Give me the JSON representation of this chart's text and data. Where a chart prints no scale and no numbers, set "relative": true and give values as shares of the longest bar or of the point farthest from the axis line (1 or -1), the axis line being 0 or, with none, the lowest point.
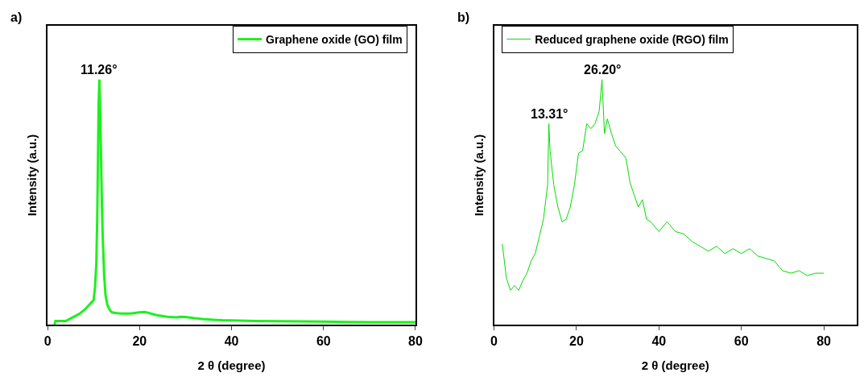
{
  "chart_data": [
    {
      "type": "line",
      "relative": true,
      "xlabel": "2 θ (degree)",
      "ylabel": "Intensity (a.u.)",
      "xlim": [
        0,
        80
      ],
      "xticks": [
        0,
        20,
        40,
        60,
        80
      ],
      "legend": "top right",
      "line_style": "solid",
      "annotations": [
        "a)",
        {
          "text": "11.26°",
          "x": 11.26,
          "y": 1
        }
      ],
      "series": [
        {
          "name": "Graphene oxide (GO) film",
          "color": "#1ef01e",
          "x": [
            1.5,
            1.7,
            3,
            4,
            5,
            6,
            7,
            8,
            9,
            9.5,
            10,
            10.3,
            10.6,
            10.8,
            11,
            11.1,
            11.26,
            11.4,
            11.6,
            11.8,
            12,
            12.3,
            12.6,
            13,
            13.5,
            14,
            15,
            16,
            18,
            20,
            21,
            22,
            23,
            24,
            26,
            28,
            29,
            30,
            32,
            34,
            36,
            38,
            40,
            45,
            50,
            55,
            60,
            65,
            70,
            75,
            80
          ],
          "values": [
            0,
            0.015,
            0.015,
            0.015,
            0.025,
            0.035,
            0.045,
            0.06,
            0.08,
            0.09,
            0.1,
            0.15,
            0.25,
            0.45,
            0.75,
            0.9,
            1,
            0.9,
            0.7,
            0.5,
            0.35,
            0.2,
            0.12,
            0.08,
            0.06,
            0.05,
            0.047,
            0.045,
            0.045,
            0.05,
            0.052,
            0.048,
            0.042,
            0.038,
            0.032,
            0.03,
            0.032,
            0.031,
            0.026,
            0.022,
            0.02,
            0.018,
            0.017,
            0.015,
            0.014,
            0.013,
            0.012,
            0.011,
            0.01,
            0.01,
            0.01
          ]
        }
      ]
    },
    {
      "type": "line",
      "relative": true,
      "xlabel": "2 θ (degree)",
      "ylabel": "Intensity (a.u.)",
      "xlim": [
        0,
        88
      ],
      "xticks": [
        0,
        20,
        40,
        60,
        80
      ],
      "legend": "top left",
      "line_style": "solid",
      "annotations": [
        "b)",
        {
          "text": "13.31°",
          "x": 13.31,
          "y": 0.82
        },
        {
          "text": "26.20°",
          "x": 26.2,
          "y": 1
        }
      ],
      "series": [
        {
          "name": "Reduced graphene oxide (RGO) film",
          "color": "#00dd00",
          "x": [
            2,
            2.3,
            3,
            4,
            5,
            6,
            7,
            8,
            9,
            10,
            11,
            12,
            13,
            13.31,
            13.6,
            14.5,
            15.5,
            16.5,
            17.5,
            18.5,
            19.5,
            20.5,
            21.5,
            22.5,
            23.5,
            24.5,
            25.5,
            26.2,
            26.8,
            27.5,
            28.5,
            29.5,
            30.5,
            32,
            33,
            34,
            35,
            36,
            37,
            38,
            40,
            42,
            44,
            46,
            48,
            50,
            52,
            54,
            56,
            58,
            60,
            62,
            64,
            66,
            68,
            70,
            72,
            74,
            76,
            78,
            80
          ],
          "values": [
            0.33,
            0.29,
            0.19,
            0.14,
            0.16,
            0.14,
            0.18,
            0.21,
            0.26,
            0.29,
            0.36,
            0.43,
            0.57,
            0.82,
            0.71,
            0.57,
            0.48,
            0.42,
            0.43,
            0.48,
            0.57,
            0.7,
            0.71,
            0.82,
            0.8,
            0.82,
            0.87,
            1,
            0.78,
            0.84,
            0.78,
            0.73,
            0.71,
            0.68,
            0.58,
            0.53,
            0.48,
            0.51,
            0.43,
            0.42,
            0.38,
            0.42,
            0.38,
            0.37,
            0.34,
            0.32,
            0.3,
            0.32,
            0.29,
            0.31,
            0.29,
            0.31,
            0.28,
            0.27,
            0.26,
            0.22,
            0.21,
            0.22,
            0.2,
            0.21,
            0.21
          ]
        }
      ]
    }
  ]
}
